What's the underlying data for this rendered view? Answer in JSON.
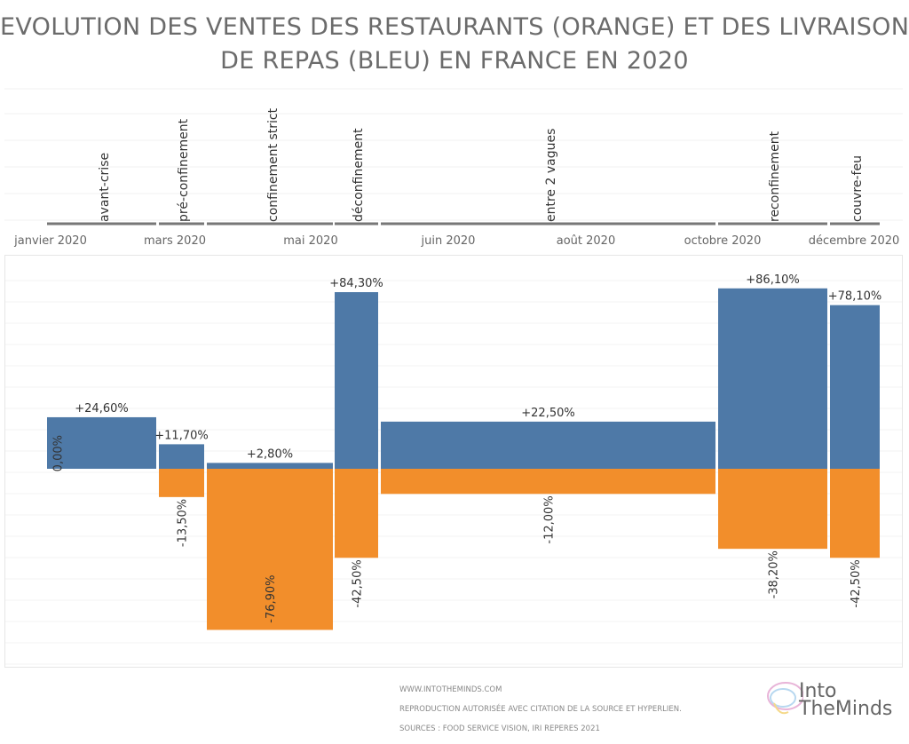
{
  "title": {
    "line1": "EVOLUTION DES VENTES DES RESTAURANTS (ORANGE) ET DES LIVRAISONS",
    "line2": "DE REPAS (BLEU) EN FRANCE EN 2020"
  },
  "chart_data": {
    "type": "bar",
    "categories": [
      "avant-crise",
      "pré-confinement",
      "confinement strict",
      "déconfinement",
      "entre 2 vagues",
      "reconfinement",
      "couvre-feu"
    ],
    "x_tick_labels": [
      "janvier 2020",
      "mars 2020",
      "mai 2020",
      "juin 2020",
      "août 2020",
      "octobre 2020",
      "décembre 2020"
    ],
    "series": [
      {
        "color": "#4e79a7",
        "values": [
          24.6,
          11.7,
          2.8,
          84.3,
          22.5,
          86.1,
          78.1
        ],
        "labels": [
          "+24,60%",
          "+11,70%",
          "+2,80%",
          "+84,30%",
          "+22,50%",
          "+86,10%",
          "+78,10%"
        ]
      },
      {
        "color": "#f28e2b",
        "values": [
          0,
          -13.5,
          -76.9,
          -42.5,
          -12.0,
          -38.2,
          -42.5
        ],
        "labels": [
          "0,00%",
          "-13,50%",
          "-76,90%",
          "-42,50%",
          "-12,00%",
          "-38,20%",
          "-42,50%"
        ]
      }
    ],
    "unit": "%",
    "grid": true,
    "variable_width": true
  },
  "footer": {
    "site": "WWW.INTOTHEMINDS.COM",
    "rights": "REPRODUCTION AUTORISÉE AVEC CITATION DE LA SOURCE ET HYPERLIEN.",
    "sources": "SOURCES : FOOD SERVICE VISION, IRI REPERES 2021"
  },
  "logo": {
    "line1": "Into",
    "line2": "TheMinds"
  }
}
